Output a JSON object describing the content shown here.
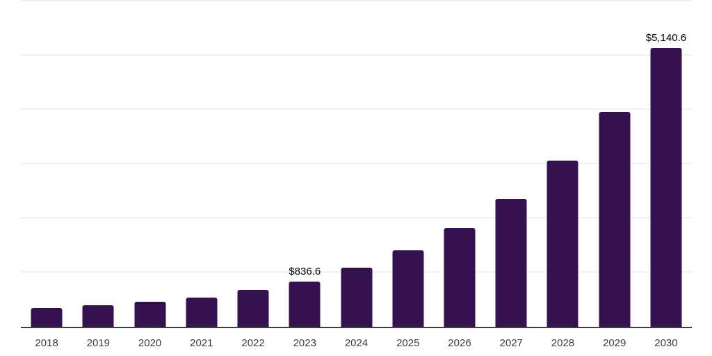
{
  "chart_data": {
    "type": "bar",
    "categories": [
      "2018",
      "2019",
      "2020",
      "2021",
      "2022",
      "2023",
      "2024",
      "2025",
      "2026",
      "2027",
      "2028",
      "2029",
      "2030"
    ],
    "values": [
      350,
      395,
      460,
      540,
      680,
      836.6,
      1084,
      1405,
      1822,
      2361,
      3060,
      3966,
      5140.6
    ],
    "data_labels": {
      "2023": "$836.6",
      "2030": "$5,140.6"
    },
    "value_prefix": "$",
    "xlabel": "",
    "ylabel": "",
    "ylim": [
      0,
      6000
    ],
    "gridline_interval": 1000,
    "grid": "horizontal-only",
    "legend_position": "none",
    "y_tick_labels_visible": false,
    "bar_color": "#36114F",
    "axis_line_color": "#3f3f3f",
    "gridline_color": "#f2f2f2",
    "data_label_color": "#000000",
    "tick_label_color": "#3d3d3d",
    "background_color": "#ffffff"
  }
}
